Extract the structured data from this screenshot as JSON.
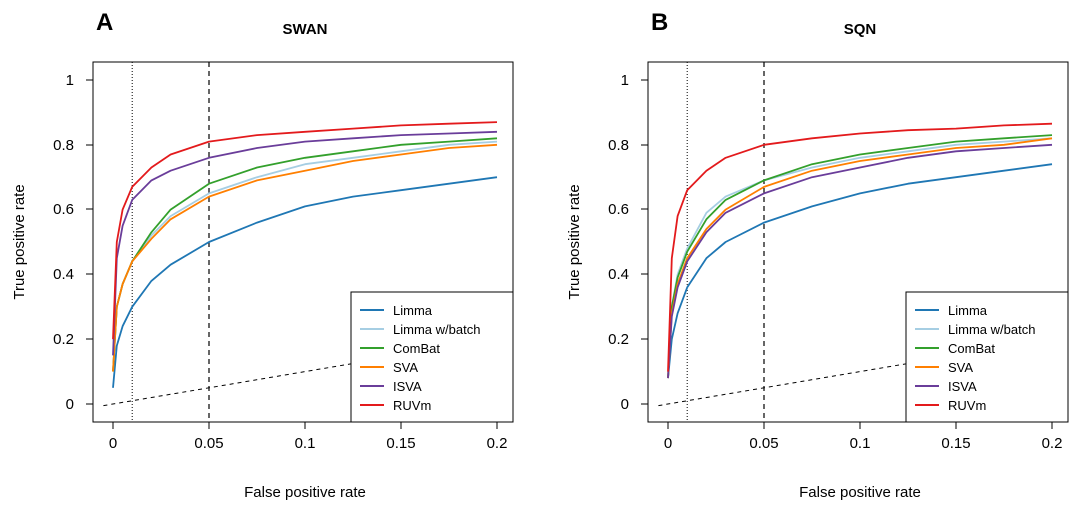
{
  "chart_data": [
    {
      "type": "line",
      "panel_label": "A",
      "title": "SWAN",
      "xlabel": "False positive rate",
      "ylabel": "True positive rate",
      "xlim": [
        0,
        0.2
      ],
      "ylim": [
        0,
        1
      ],
      "x_ticks": [
        "0",
        "0.05",
        "0.1",
        "0.15",
        "0.2"
      ],
      "y_ticks": [
        "0",
        "0.2",
        "0.4",
        "0.6",
        "0.8",
        "1"
      ],
      "reference_lines": {
        "dotted_x": 0.01,
        "dashed_x": 0.05,
        "diagonal": true
      },
      "legend_position": "bottom-right",
      "series": [
        {
          "name": "Limma",
          "color": "#1f77b4",
          "x": [
            0,
            0.002,
            0.005,
            0.01,
            0.02,
            0.03,
            0.05,
            0.075,
            0.1,
            0.125,
            0.15,
            0.175,
            0.2
          ],
          "y": [
            0.05,
            0.18,
            0.24,
            0.3,
            0.38,
            0.43,
            0.5,
            0.56,
            0.61,
            0.64,
            0.66,
            0.68,
            0.7
          ]
        },
        {
          "name": "Limma w/batch",
          "color": "#a6cee3",
          "x": [
            0,
            0.002,
            0.005,
            0.01,
            0.02,
            0.03,
            0.05,
            0.075,
            0.1,
            0.125,
            0.15,
            0.175,
            0.2
          ],
          "y": [
            0.1,
            0.3,
            0.37,
            0.44,
            0.52,
            0.58,
            0.65,
            0.7,
            0.74,
            0.76,
            0.78,
            0.8,
            0.81
          ]
        },
        {
          "name": "ComBat",
          "color": "#33a02c",
          "x": [
            0,
            0.002,
            0.005,
            0.01,
            0.02,
            0.03,
            0.05,
            0.075,
            0.1,
            0.125,
            0.15,
            0.175,
            0.2
          ],
          "y": [
            0.1,
            0.3,
            0.37,
            0.44,
            0.53,
            0.6,
            0.68,
            0.73,
            0.76,
            0.78,
            0.8,
            0.81,
            0.82
          ]
        },
        {
          "name": "SVA",
          "color": "#ff7f00",
          "x": [
            0,
            0.002,
            0.005,
            0.01,
            0.02,
            0.03,
            0.05,
            0.075,
            0.1,
            0.125,
            0.15,
            0.175,
            0.2
          ],
          "y": [
            0.1,
            0.3,
            0.37,
            0.44,
            0.51,
            0.57,
            0.64,
            0.69,
            0.72,
            0.75,
            0.77,
            0.79,
            0.8
          ]
        },
        {
          "name": "ISVA",
          "color": "#6a3d9a",
          "x": [
            0,
            0.002,
            0.005,
            0.01,
            0.02,
            0.03,
            0.05,
            0.075,
            0.1,
            0.125,
            0.15,
            0.175,
            0.2
          ],
          "y": [
            0.15,
            0.45,
            0.55,
            0.63,
            0.69,
            0.72,
            0.76,
            0.79,
            0.81,
            0.82,
            0.83,
            0.835,
            0.84
          ]
        },
        {
          "name": "RUVm",
          "color": "#e31a1c",
          "x": [
            0,
            0.002,
            0.005,
            0.01,
            0.02,
            0.03,
            0.05,
            0.075,
            0.1,
            0.125,
            0.15,
            0.175,
            0.2
          ],
          "y": [
            0.2,
            0.5,
            0.6,
            0.67,
            0.73,
            0.77,
            0.81,
            0.83,
            0.84,
            0.85,
            0.86,
            0.865,
            0.87
          ]
        }
      ]
    },
    {
      "type": "line",
      "panel_label": "B",
      "title": "SQN",
      "xlabel": "False positive rate",
      "ylabel": "True positive rate",
      "xlim": [
        0,
        0.2
      ],
      "ylim": [
        0,
        1
      ],
      "x_ticks": [
        "0",
        "0.05",
        "0.1",
        "0.15",
        "0.2"
      ],
      "y_ticks": [
        "0",
        "0.2",
        "0.4",
        "0.6",
        "0.8",
        "1"
      ],
      "reference_lines": {
        "dotted_x": 0.01,
        "dashed_x": 0.05,
        "diagonal": true
      },
      "legend_position": "bottom-right",
      "series": [
        {
          "name": "Limma",
          "color": "#1f77b4",
          "x": [
            0,
            0.002,
            0.005,
            0.01,
            0.02,
            0.03,
            0.05,
            0.075,
            0.1,
            0.125,
            0.15,
            0.175,
            0.2
          ],
          "y": [
            0.08,
            0.2,
            0.28,
            0.36,
            0.45,
            0.5,
            0.56,
            0.61,
            0.65,
            0.68,
            0.7,
            0.72,
            0.74
          ]
        },
        {
          "name": "Limma w/batch",
          "color": "#a6cee3",
          "x": [
            0,
            0.002,
            0.005,
            0.01,
            0.02,
            0.03,
            0.05,
            0.075,
            0.1,
            0.125,
            0.15,
            0.175,
            0.2
          ],
          "y": [
            0.08,
            0.3,
            0.4,
            0.48,
            0.59,
            0.64,
            0.69,
            0.73,
            0.76,
            0.78,
            0.8,
            0.81,
            0.82
          ]
        },
        {
          "name": "ComBat",
          "color": "#33a02c",
          "x": [
            0,
            0.002,
            0.005,
            0.01,
            0.02,
            0.03,
            0.05,
            0.075,
            0.1,
            0.125,
            0.15,
            0.175,
            0.2
          ],
          "y": [
            0.08,
            0.3,
            0.39,
            0.47,
            0.57,
            0.63,
            0.69,
            0.74,
            0.77,
            0.79,
            0.81,
            0.82,
            0.83
          ]
        },
        {
          "name": "SVA",
          "color": "#ff7f00",
          "x": [
            0,
            0.002,
            0.005,
            0.01,
            0.02,
            0.03,
            0.05,
            0.075,
            0.1,
            0.125,
            0.15,
            0.175,
            0.2
          ],
          "y": [
            0.08,
            0.28,
            0.37,
            0.45,
            0.54,
            0.6,
            0.67,
            0.72,
            0.75,
            0.77,
            0.79,
            0.8,
            0.82
          ]
        },
        {
          "name": "ISVA",
          "color": "#6a3d9a",
          "x": [
            0,
            0.002,
            0.005,
            0.01,
            0.02,
            0.03,
            0.05,
            0.075,
            0.1,
            0.125,
            0.15,
            0.175,
            0.2
          ],
          "y": [
            0.08,
            0.27,
            0.36,
            0.44,
            0.53,
            0.59,
            0.65,
            0.7,
            0.73,
            0.76,
            0.78,
            0.79,
            0.8
          ]
        },
        {
          "name": "RUVm",
          "color": "#e31a1c",
          "x": [
            0,
            0.002,
            0.005,
            0.01,
            0.02,
            0.03,
            0.05,
            0.075,
            0.1,
            0.125,
            0.15,
            0.175,
            0.2
          ],
          "y": [
            0.1,
            0.45,
            0.58,
            0.66,
            0.72,
            0.76,
            0.8,
            0.82,
            0.835,
            0.845,
            0.85,
            0.86,
            0.865
          ]
        }
      ]
    }
  ]
}
